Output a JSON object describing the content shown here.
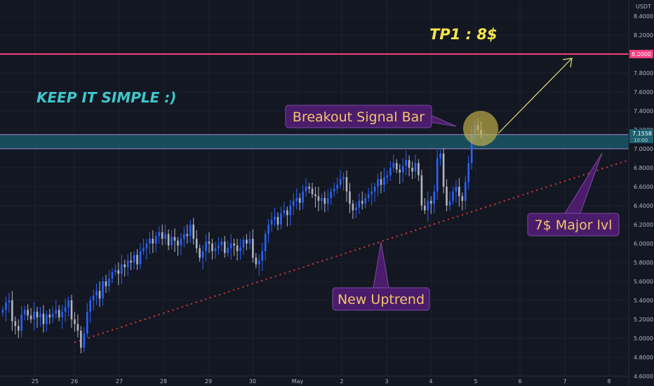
{
  "chart_data": {
    "type": "candlestick",
    "currency": "USDT",
    "ylim": [
      4.6,
      8.6
    ],
    "y_ticks": [
      "8.4000",
      "8.2000",
      "7.8000",
      "7.6000",
      "7.4000",
      "7.2000",
      "7.0000",
      "6.8000",
      "6.6000",
      "6.4000",
      "6.2000",
      "6.0000",
      "5.8000",
      "5.6000",
      "5.4000",
      "5.2000",
      "5.0000",
      "4.8000",
      "4.6000"
    ],
    "x_ticks": [
      "25",
      "26",
      "27",
      "28",
      "29",
      "30",
      "May",
      "2",
      "3",
      "4",
      "5",
      "6",
      "7",
      "8"
    ],
    "price_label": {
      "value": "7.1558",
      "time": "10:00"
    },
    "target_label": "8.0000",
    "levels": {
      "target": 8.0,
      "zone_low": 7.0,
      "zone_high": 7.15
    },
    "colors": {
      "up": "#2962ff",
      "down": "#b2b5be",
      "target": "#f23f7e",
      "zone": "#1c5f6e",
      "trend": "#d63a3a",
      "arrow": "#e6e27a",
      "badge": "#4a1c6b"
    },
    "close_series": [
      5.3,
      5.38,
      5.4,
      5.18,
      5.13,
      5.08,
      5.25,
      5.3,
      5.24,
      5.2,
      5.28,
      5.22,
      5.26,
      5.15,
      5.25,
      5.22,
      5.26,
      5.3,
      5.22,
      5.28,
      5.33,
      5.4,
      5.2,
      5.15,
      5.08,
      4.9,
      5.05,
      5.28,
      5.4,
      5.45,
      5.5,
      5.42,
      5.6,
      5.55,
      5.63,
      5.7,
      5.72,
      5.68,
      5.78,
      5.75,
      5.82,
      5.8,
      5.88,
      5.78,
      5.92,
      5.95,
      6.0,
      6.05,
      6.0,
      6.08,
      6.12,
      6.05,
      6.1,
      5.98,
      6.07,
      6.03,
      5.98,
      6.05,
      6.1,
      6.08,
      6.2,
      6.05,
      5.95,
      5.85,
      5.92,
      6.02,
      6.0,
      5.92,
      5.95,
      5.98,
      6.02,
      5.9,
      5.95,
      6.0,
      5.98,
      5.92,
      5.96,
      6.04,
      6.0,
      6.05,
      5.85,
      5.78,
      5.82,
      5.92,
      6.1,
      6.2,
      6.25,
      6.28,
      6.2,
      6.32,
      6.35,
      6.3,
      6.4,
      6.45,
      6.48,
      6.43,
      6.55,
      6.6,
      6.58,
      6.52,
      6.5,
      6.45,
      6.48,
      6.42,
      6.48,
      6.55,
      6.58,
      6.62,
      6.68,
      6.7,
      6.55,
      6.42,
      6.35,
      6.38,
      6.45,
      6.42,
      6.48,
      6.52,
      6.55,
      6.6,
      6.68,
      6.62,
      6.7,
      6.72,
      6.8,
      6.85,
      6.78,
      6.75,
      6.82,
      6.88,
      6.8,
      6.76,
      6.85,
      6.72,
      6.4,
      6.35,
      6.45,
      6.42,
      6.55,
      6.9,
      6.95,
      6.6,
      6.4,
      6.45,
      6.55,
      6.6,
      6.5,
      6.45,
      6.65,
      6.85,
      7.15,
      7.25,
      7.2,
      7.15,
      7.16
    ]
  },
  "annotations": {
    "tp1": "TP1 : 8$",
    "keep_simple": "KEEP IT SIMPLE :)",
    "breakout": "Breakout Signal Bar",
    "major_lvl": "7$ Major lvl",
    "uptrend": "New Uptrend"
  }
}
